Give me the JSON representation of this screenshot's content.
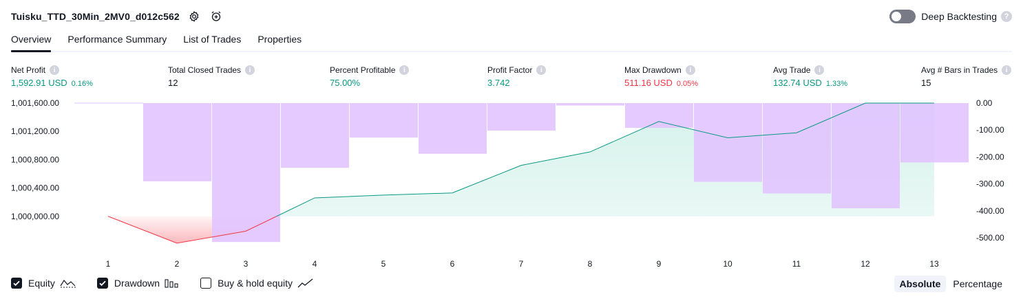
{
  "header": {
    "title": "Tuisku_TTD_30Min_2MV0_d012c562",
    "deep_backtesting_label": "Deep Backtesting",
    "help_glyph": "?"
  },
  "tabs": [
    {
      "label": "Overview",
      "active": true
    },
    {
      "label": "Performance Summary",
      "active": false
    },
    {
      "label": "List of Trades",
      "active": false
    },
    {
      "label": "Properties",
      "active": false
    }
  ],
  "metrics": [
    {
      "label": "Net Profit",
      "value": "1,592.91 USD",
      "pct": "0.16%",
      "tone": "pos"
    },
    {
      "label": "Total Closed Trades",
      "value": "12",
      "pct": "",
      "tone": "plain"
    },
    {
      "label": "Percent Profitable",
      "value": "75.00%",
      "pct": "",
      "tone": "pos"
    },
    {
      "label": "Profit Factor",
      "value": "3.742",
      "pct": "",
      "tone": "pos"
    },
    {
      "label": "Max Drawdown",
      "value": "511.16 USD",
      "pct": "0.05%",
      "tone": "neg"
    },
    {
      "label": "Avg Trade",
      "value": "132.74 USD",
      "pct": "1.33%",
      "tone": "pos"
    },
    {
      "label": "Avg # Bars in Trades",
      "value": "15",
      "pct": "",
      "tone": "plain"
    }
  ],
  "info_glyph": "i",
  "legend": {
    "equity_label": "Equity",
    "drawdown_label": "Drawdown",
    "buyhold_label": "Buy & hold equity",
    "equity_checked": true,
    "drawdown_checked": true,
    "buyhold_checked": false
  },
  "modes": {
    "absolute_label": "Absolute",
    "percentage_label": "Percentage",
    "selected": "Absolute"
  },
  "colors": {
    "equity_line": "#089981",
    "equity_fill": "#d3f1ea",
    "equity_negative": "#f23645",
    "drawdown_bar": "#e1c4ff",
    "positive": "#089981",
    "negative": "#f23645"
  },
  "chart_data": {
    "type": "area",
    "x": [
      1,
      2,
      3,
      4,
      5,
      6,
      7,
      8,
      9,
      10,
      11,
      12,
      13
    ],
    "series": [
      {
        "name": "Equity",
        "axis": "left",
        "values": [
          1000000.0,
          999620.0,
          999790.0,
          1000260.0,
          1000300.0,
          1000330.0,
          1000720.0,
          1000910.0,
          1001340.0,
          1001110.0,
          1001180.0,
          1001600.0,
          1001600.0
        ]
      },
      {
        "name": "Drawdown",
        "axis": "right",
        "type": "bar",
        "values": [
          0,
          -290,
          -515,
          -240,
          -128,
          -188,
          -102,
          -9,
          -92,
          -292,
          -335,
          -390,
          -220
        ]
      }
    ],
    "left_ticks": [
      "1,001,600.00",
      "1,001,200.00",
      "1,000,800.00",
      "1,000,400.00",
      "1,000,000.00"
    ],
    "right_ticks": [
      "0.00",
      "-100.00",
      "-200.00",
      "-300.00",
      "-400.00",
      "-500.00"
    ],
    "ylim_left": [
      999580,
      1001600
    ],
    "ylim_right": [
      -530,
      0
    ]
  }
}
